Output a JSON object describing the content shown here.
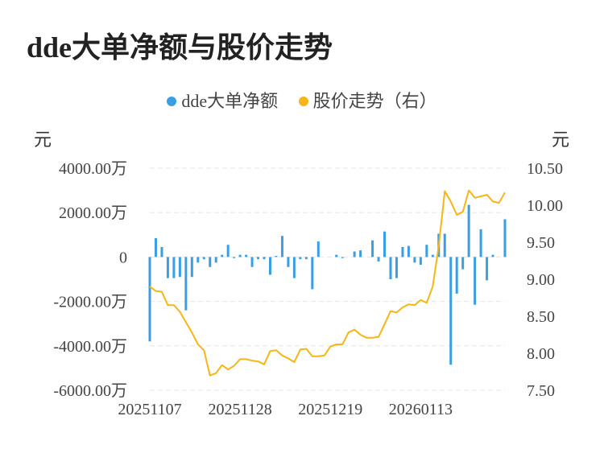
{
  "title": "dde大单净额与股价走势",
  "legend": [
    {
      "label": "dde大单净额",
      "color": "#3a9ee4"
    },
    {
      "label": "股价走势（右）",
      "color": "#f5b616"
    }
  ],
  "chart_data": {
    "type": "bar+line",
    "left_unit": "元",
    "right_unit": "元",
    "y_left": {
      "ticks": [
        4000,
        2000,
        0,
        -2000,
        -4000,
        -6000
      ],
      "tick_labels": [
        "4000.00万",
        "2000.00万",
        "0",
        "-2000.00万",
        "-4000.00万",
        "-6000.00万"
      ],
      "range": [
        -6000,
        4000
      ],
      "unit": "万元"
    },
    "y_right": {
      "ticks": [
        10.5,
        10.0,
        9.5,
        9.0,
        8.5,
        8.0,
        7.5
      ],
      "tick_labels": [
        "10.50",
        "10.00",
        "9.50",
        "9.00",
        "8.50",
        "8.00",
        "7.50"
      ],
      "range": [
        7.5,
        10.5
      ]
    },
    "x_tick_labels": [
      {
        "label": "20251107",
        "index": 0
      },
      {
        "label": "20251128",
        "index": 15
      },
      {
        "label": "20251219",
        "index": 30
      },
      {
        "label": "20260113",
        "index": 45
      }
    ],
    "grid": "horizontal-dashed",
    "series": [
      {
        "name": "dde大单净额",
        "type": "bar",
        "color": "#3a9ee4",
        "values": [
          -3800,
          850,
          450,
          -950,
          -950,
          -900,
          -2400,
          -900,
          -250,
          -100,
          -450,
          -250,
          100,
          550,
          -50,
          100,
          100,
          -450,
          -100,
          -100,
          -800,
          50,
          950,
          -450,
          -950,
          -100,
          -100,
          -1450,
          700,
          0,
          0,
          100,
          -50,
          0,
          250,
          300,
          0,
          750,
          -200,
          1150,
          -1000,
          -950,
          450,
          500,
          -250,
          -350,
          550,
          100,
          1050,
          1050,
          -4850,
          -1650,
          -550,
          2350,
          -2150,
          1250,
          -1050,
          100,
          0,
          1700
        ]
      },
      {
        "name": "股价走势（右）",
        "type": "line",
        "color": "#f5b616",
        "values": [
          8.9,
          8.84,
          8.83,
          8.65,
          8.65,
          8.56,
          8.42,
          8.28,
          8.12,
          8.04,
          7.7,
          7.73,
          7.84,
          7.78,
          7.83,
          7.92,
          7.92,
          7.9,
          7.89,
          7.85,
          8.03,
          8.04,
          7.97,
          7.93,
          7.88,
          8.05,
          8.06,
          7.96,
          7.96,
          7.97,
          8.09,
          8.12,
          8.12,
          8.28,
          8.32,
          8.25,
          8.21,
          8.21,
          8.22,
          8.39,
          8.57,
          8.55,
          8.62,
          8.66,
          8.65,
          8.72,
          8.68,
          8.9,
          9.45,
          10.19,
          10.05,
          9.87,
          9.91,
          10.2,
          10.1,
          10.12,
          10.14,
          10.05,
          10.03,
          10.17
        ]
      }
    ]
  }
}
